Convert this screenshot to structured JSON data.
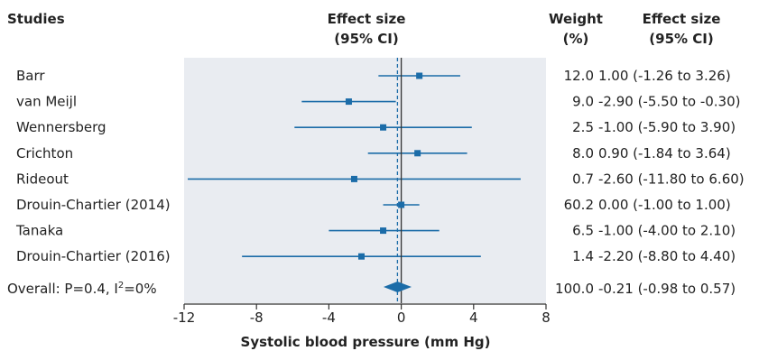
{
  "colors": {
    "panel": "#e9ecf1",
    "accent": "#1b6ca8",
    "text": "#222222"
  },
  "header": {
    "studies": "Studies",
    "effect_line1": "Effect size",
    "effect_line2": "(95% CI)",
    "weight_line1": "Weight",
    "weight_line2": "(%)",
    "ci_line1": "Effect size",
    "ci_line2": "(95% CI)"
  },
  "chart_data": {
    "type": "forest",
    "xlabel": "Systolic blood pressure (mm Hg)",
    "xlim": [
      -12,
      8
    ],
    "xticks": [
      -12,
      -8,
      -4,
      0,
      4,
      8
    ],
    "reference_line": 0,
    "studies": [
      {
        "name": "Barr",
        "weight": "12.0",
        "ci_text": "1.00 (-1.26 to 3.26)",
        "estimate": 1.0,
        "lower": -1.26,
        "upper": 3.26
      },
      {
        "name": "van Meijl",
        "weight": "9.0",
        "ci_text": "-2.90 (-5.50 to -0.30)",
        "estimate": -2.9,
        "lower": -5.5,
        "upper": -0.3
      },
      {
        "name": "Wennersberg",
        "weight": "2.5",
        "ci_text": "-1.00 (-5.90 to 3.90)",
        "estimate": -1.0,
        "lower": -5.9,
        "upper": 3.9
      },
      {
        "name": "Crichton",
        "weight": "8.0",
        "ci_text": "0.90 (-1.84 to 3.64)",
        "estimate": 0.9,
        "lower": -1.84,
        "upper": 3.64
      },
      {
        "name": "Rideout",
        "weight": "0.7",
        "ci_text": "-2.60 (-11.80 to 6.60)",
        "estimate": -2.6,
        "lower": -11.8,
        "upper": 6.6
      },
      {
        "name": "Drouin-Chartier (2014)",
        "weight": "60.2",
        "ci_text": "0.00 (-1.00 to 1.00)",
        "estimate": 0.0,
        "lower": -1.0,
        "upper": 1.0
      },
      {
        "name": "Tanaka",
        "weight": "6.5",
        "ci_text": "-1.00 (-4.00 to 2.10)",
        "estimate": -1.0,
        "lower": -4.0,
        "upper": 2.1
      },
      {
        "name": "Drouin-Chartier (2016)",
        "weight": "1.4",
        "ci_text": "-2.20 (-8.80 to 4.40)",
        "estimate": -2.2,
        "lower": -8.8,
        "upper": 4.4
      }
    ],
    "overall": {
      "label_prefix": "Overall: P=0.4, I",
      "label_sup": "2",
      "label_suffix": "=0%",
      "weight": "100.0",
      "ci_text": "-0.21 (-0.98 to 0.57)",
      "estimate": -0.21,
      "lower": -0.98,
      "upper": 0.57
    }
  }
}
